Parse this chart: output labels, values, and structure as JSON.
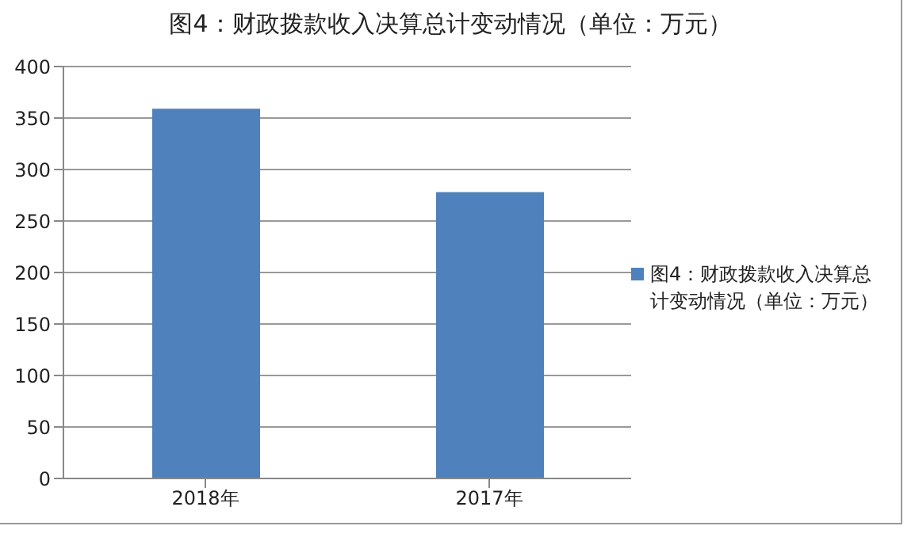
{
  "chart_data": {
    "type": "bar",
    "title": "图4：财政拨款收入决算总计变动情况（单位：万元）",
    "categories": [
      "2018年",
      "2017年"
    ],
    "series": [
      {
        "name": "图4：财政拨款收入决算总计变动情况（单位：万元）",
        "color": "#4f81bd",
        "values": [
          359,
          278
        ]
      }
    ],
    "ylim": [
      0,
      400
    ],
    "yticks": [
      0,
      50,
      100,
      150,
      200,
      250,
      300,
      350,
      400
    ],
    "grid": "y",
    "legend": "right"
  }
}
